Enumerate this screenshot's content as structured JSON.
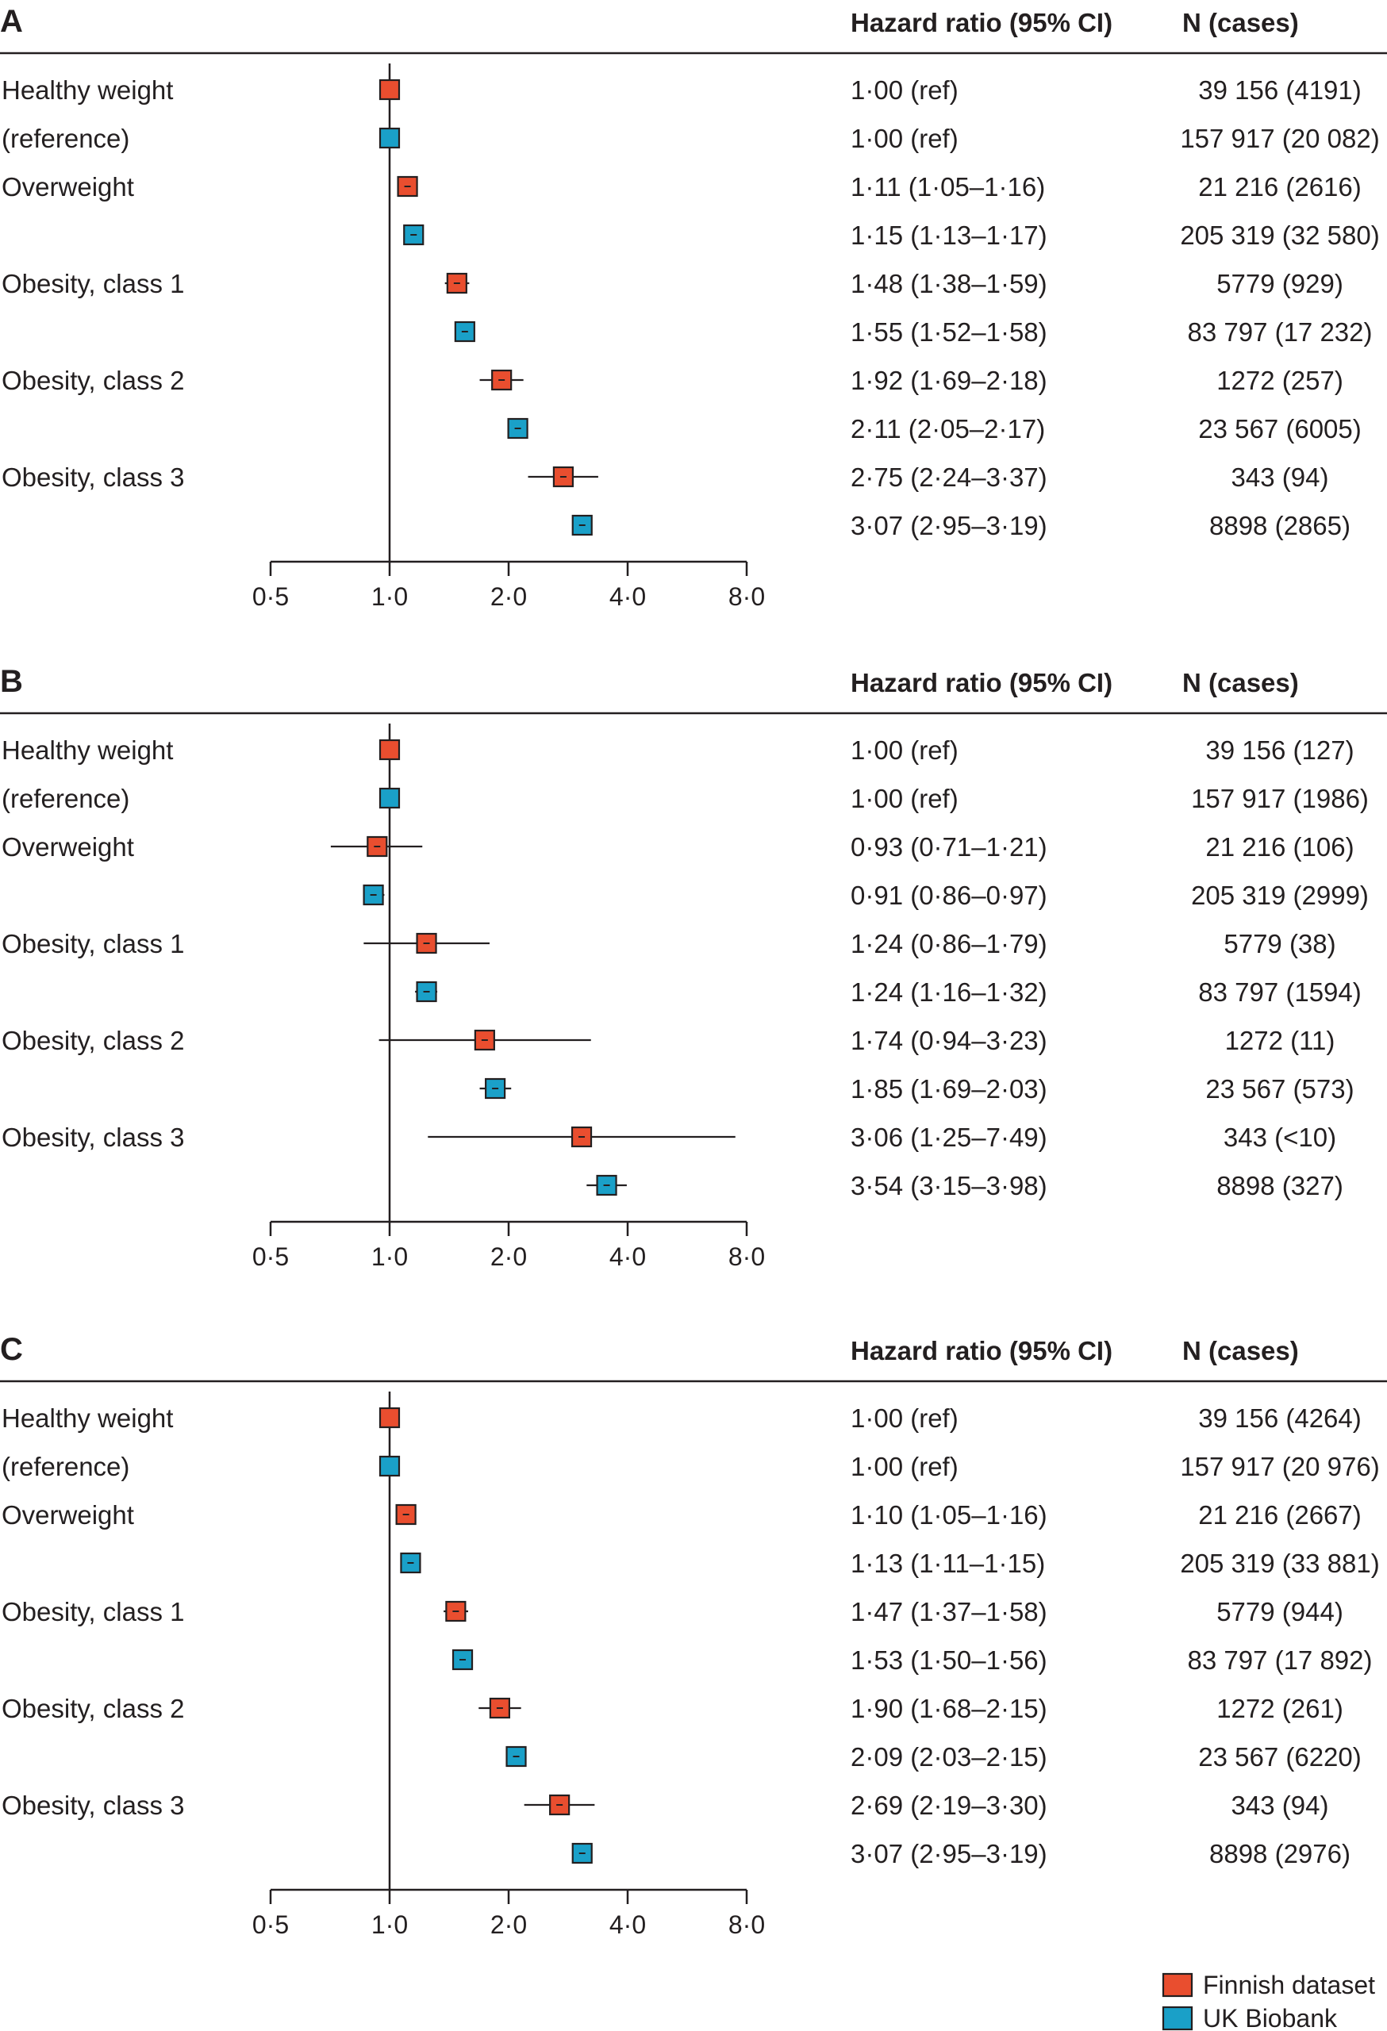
{
  "headers": {
    "hr": "Hazard ratio (95% CI)",
    "n": "N (cases)"
  },
  "categories": [
    "Healthy weight",
    "(reference)",
    "Overweight",
    "Obesity, class 1",
    "Obesity, class 2",
    "Obesity, class 3"
  ],
  "legend": [
    {
      "name": "Finnish dataset",
      "color": "#e94e2f"
    },
    {
      "name": "UK Biobank",
      "color": "#1aa0c8"
    }
  ],
  "colors": {
    "finnish": "#e94e2f",
    "ukb": "#1aa0c8",
    "ink": "#231f20"
  },
  "chart_data": [
    {
      "type": "forest",
      "panel": "A",
      "x_scale": "log2",
      "xlim": [
        0.5,
        8.0
      ],
      "x_ticks": [
        "0·5",
        "1·0",
        "2·0",
        "4·0",
        "8·0"
      ],
      "reference_line": 1.0,
      "rows": [
        {
          "category": "Healthy weight",
          "dataset": "Finnish dataset",
          "hr": 1.0,
          "lo": 1.0,
          "hi": 1.0,
          "hr_text": "1·00 (ref)",
          "n_text": "39 156 (4191)"
        },
        {
          "category": "(reference)",
          "dataset": "UK Biobank",
          "hr": 1.0,
          "lo": 1.0,
          "hi": 1.0,
          "hr_text": "1·00 (ref)",
          "n_text": "157 917 (20 082)"
        },
        {
          "category": "Overweight",
          "dataset": "Finnish dataset",
          "hr": 1.11,
          "lo": 1.05,
          "hi": 1.16,
          "hr_text": "1·11 (1·05–1·16)",
          "n_text": "21 216 (2616)"
        },
        {
          "category": "",
          "dataset": "UK Biobank",
          "hr": 1.15,
          "lo": 1.13,
          "hi": 1.17,
          "hr_text": "1·15 (1·13–1·17)",
          "n_text": "205 319 (32 580)"
        },
        {
          "category": "Obesity, class 1",
          "dataset": "Finnish dataset",
          "hr": 1.48,
          "lo": 1.38,
          "hi": 1.59,
          "hr_text": "1·48 (1·38–1·59)",
          "n_text": "5779 (929)"
        },
        {
          "category": "",
          "dataset": "UK Biobank",
          "hr": 1.55,
          "lo": 1.52,
          "hi": 1.58,
          "hr_text": "1·55 (1·52–1·58)",
          "n_text": "83 797 (17 232)"
        },
        {
          "category": "Obesity, class 2",
          "dataset": "Finnish dataset",
          "hr": 1.92,
          "lo": 1.69,
          "hi": 2.18,
          "hr_text": "1·92 (1·69–2·18)",
          "n_text": "1272 (257)"
        },
        {
          "category": "",
          "dataset": "UK Biobank",
          "hr": 2.11,
          "lo": 2.05,
          "hi": 2.17,
          "hr_text": "2·11 (2·05–2·17)",
          "n_text": "23 567 (6005)"
        },
        {
          "category": "Obesity, class 3",
          "dataset": "Finnish dataset",
          "hr": 2.75,
          "lo": 2.24,
          "hi": 3.37,
          "hr_text": "2·75 (2·24–3·37)",
          "n_text": "343 (94)"
        },
        {
          "category": "",
          "dataset": "UK Biobank",
          "hr": 3.07,
          "lo": 2.95,
          "hi": 3.19,
          "hr_text": "3·07 (2·95–3·19)",
          "n_text": "8898 (2865)"
        }
      ]
    },
    {
      "type": "forest",
      "panel": "B",
      "x_scale": "log2",
      "xlim": [
        0.5,
        8.0
      ],
      "x_ticks": [
        "0·5",
        "1·0",
        "2·0",
        "4·0",
        "8·0"
      ],
      "reference_line": 1.0,
      "rows": [
        {
          "category": "Healthy weight",
          "dataset": "Finnish dataset",
          "hr": 1.0,
          "lo": 1.0,
          "hi": 1.0,
          "hr_text": "1·00 (ref)",
          "n_text": "39 156 (127)"
        },
        {
          "category": "(reference)",
          "dataset": "UK Biobank",
          "hr": 1.0,
          "lo": 1.0,
          "hi": 1.0,
          "hr_text": "1·00 (ref)",
          "n_text": "157 917 (1986)"
        },
        {
          "category": "Overweight",
          "dataset": "Finnish dataset",
          "hr": 0.93,
          "lo": 0.71,
          "hi": 1.21,
          "hr_text": "0·93 (0·71–1·21)",
          "n_text": "21 216 (106)"
        },
        {
          "category": "",
          "dataset": "UK Biobank",
          "hr": 0.91,
          "lo": 0.86,
          "hi": 0.97,
          "hr_text": "0·91 (0·86–0·97)",
          "n_text": "205 319 (2999)"
        },
        {
          "category": "Obesity, class 1",
          "dataset": "Finnish dataset",
          "hr": 1.24,
          "lo": 0.86,
          "hi": 1.79,
          "hr_text": "1·24 (0·86–1·79)",
          "n_text": "5779 (38)"
        },
        {
          "category": "",
          "dataset": "UK Biobank",
          "hr": 1.24,
          "lo": 1.16,
          "hi": 1.32,
          "hr_text": "1·24 (1·16–1·32)",
          "n_text": "83 797 (1594)"
        },
        {
          "category": "Obesity, class 2",
          "dataset": "Finnish dataset",
          "hr": 1.74,
          "lo": 0.94,
          "hi": 3.23,
          "hr_text": "1·74 (0·94–3·23)",
          "n_text": "1272 (11)"
        },
        {
          "category": "",
          "dataset": "UK Biobank",
          "hr": 1.85,
          "lo": 1.69,
          "hi": 2.03,
          "hr_text": "1·85 (1·69–2·03)",
          "n_text": "23 567 (573)"
        },
        {
          "category": "Obesity, class 3",
          "dataset": "Finnish dataset",
          "hr": 3.06,
          "lo": 1.25,
          "hi": 7.49,
          "hr_text": "3·06 (1·25–7·49)",
          "n_text": "343 (<10)"
        },
        {
          "category": "",
          "dataset": "UK Biobank",
          "hr": 3.54,
          "lo": 3.15,
          "hi": 3.98,
          "hr_text": "3·54 (3·15–3·98)",
          "n_text": "8898 (327)"
        }
      ]
    },
    {
      "type": "forest",
      "panel": "C",
      "x_scale": "log2",
      "xlim": [
        0.5,
        8.0
      ],
      "x_ticks": [
        "0·5",
        "1·0",
        "2·0",
        "4·0",
        "8·0"
      ],
      "reference_line": 1.0,
      "rows": [
        {
          "category": "Healthy weight",
          "dataset": "Finnish dataset",
          "hr": 1.0,
          "lo": 1.0,
          "hi": 1.0,
          "hr_text": "1·00 (ref)",
          "n_text": "39 156 (4264)"
        },
        {
          "category": "(reference)",
          "dataset": "UK Biobank",
          "hr": 1.0,
          "lo": 1.0,
          "hi": 1.0,
          "hr_text": "1·00 (ref)",
          "n_text": "157 917 (20 976)"
        },
        {
          "category": "Overweight",
          "dataset": "Finnish dataset",
          "hr": 1.1,
          "lo": 1.05,
          "hi": 1.16,
          "hr_text": "1·10 (1·05–1·16)",
          "n_text": "21 216 (2667)"
        },
        {
          "category": "",
          "dataset": "UK Biobank",
          "hr": 1.13,
          "lo": 1.11,
          "hi": 1.15,
          "hr_text": "1·13 (1·11–1·15)",
          "n_text": "205 319 (33 881)"
        },
        {
          "category": "Obesity, class 1",
          "dataset": "Finnish dataset",
          "hr": 1.47,
          "lo": 1.37,
          "hi": 1.58,
          "hr_text": "1·47 (1·37–1·58)",
          "n_text": "5779 (944)"
        },
        {
          "category": "",
          "dataset": "UK Biobank",
          "hr": 1.53,
          "lo": 1.5,
          "hi": 1.56,
          "hr_text": "1·53 (1·50–1·56)",
          "n_text": "83 797 (17 892)"
        },
        {
          "category": "Obesity, class 2",
          "dataset": "Finnish dataset",
          "hr": 1.9,
          "lo": 1.68,
          "hi": 2.15,
          "hr_text": "1·90 (1·68–2·15)",
          "n_text": "1272 (261)"
        },
        {
          "category": "",
          "dataset": "UK Biobank",
          "hr": 2.09,
          "lo": 2.03,
          "hi": 2.15,
          "hr_text": "2·09 (2·03–2·15)",
          "n_text": "23 567 (6220)"
        },
        {
          "category": "Obesity, class 3",
          "dataset": "Finnish dataset",
          "hr": 2.69,
          "lo": 2.19,
          "hi": 3.3,
          "hr_text": "2·69 (2·19–3·30)",
          "n_text": "343 (94)"
        },
        {
          "category": "",
          "dataset": "UK Biobank",
          "hr": 3.07,
          "lo": 2.95,
          "hi": 3.19,
          "hr_text": "3·07 (2·95–3·19)",
          "n_text": "8898 (2976)"
        }
      ]
    }
  ]
}
